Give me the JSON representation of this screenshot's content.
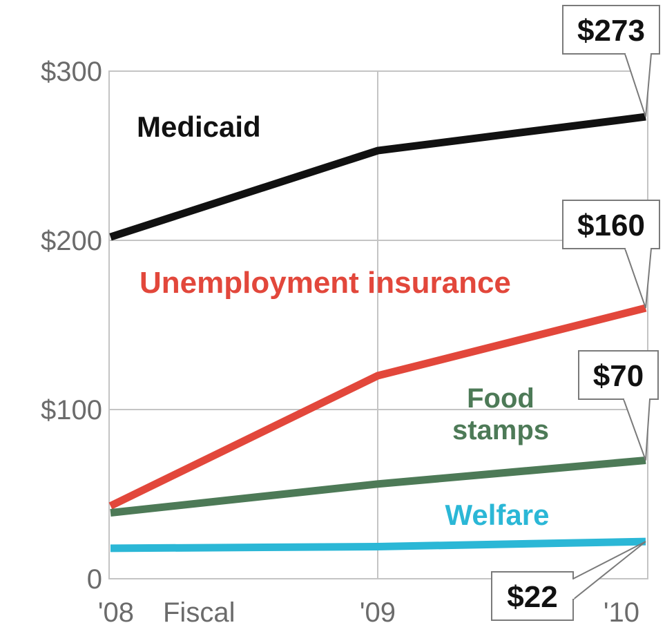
{
  "chart_data": {
    "type": "line",
    "x": [
      "'08",
      "'09",
      "'10"
    ],
    "xlabel": "Fiscal",
    "ylim": [
      0,
      300
    ],
    "yticks": [
      0,
      100,
      200,
      300
    ],
    "ytick_labels": [
      "0",
      "$100",
      "$200",
      "$300"
    ],
    "grid": true,
    "series": [
      {
        "name": "Medicaid",
        "values": [
          202,
          253,
          273
        ],
        "color": "#111111",
        "callout": "$273"
      },
      {
        "name": "Unemployment insurance",
        "values": [
          43,
          120,
          160
        ],
        "color": "#e2473b",
        "callout": "$160"
      },
      {
        "name": "Food stamps",
        "values": [
          39,
          56,
          70
        ],
        "color": "#4d7a57",
        "callout": "$70"
      },
      {
        "name": "Welfare",
        "values": [
          18,
          19,
          22
        ],
        "color": "#2bb7d6",
        "callout": "$22"
      }
    ],
    "series_label_lines": [
      [
        "Medicaid"
      ],
      [
        "Unemployment insurance"
      ],
      [
        "Food",
        "stamps"
      ],
      [
        "Welfare"
      ]
    ]
  }
}
